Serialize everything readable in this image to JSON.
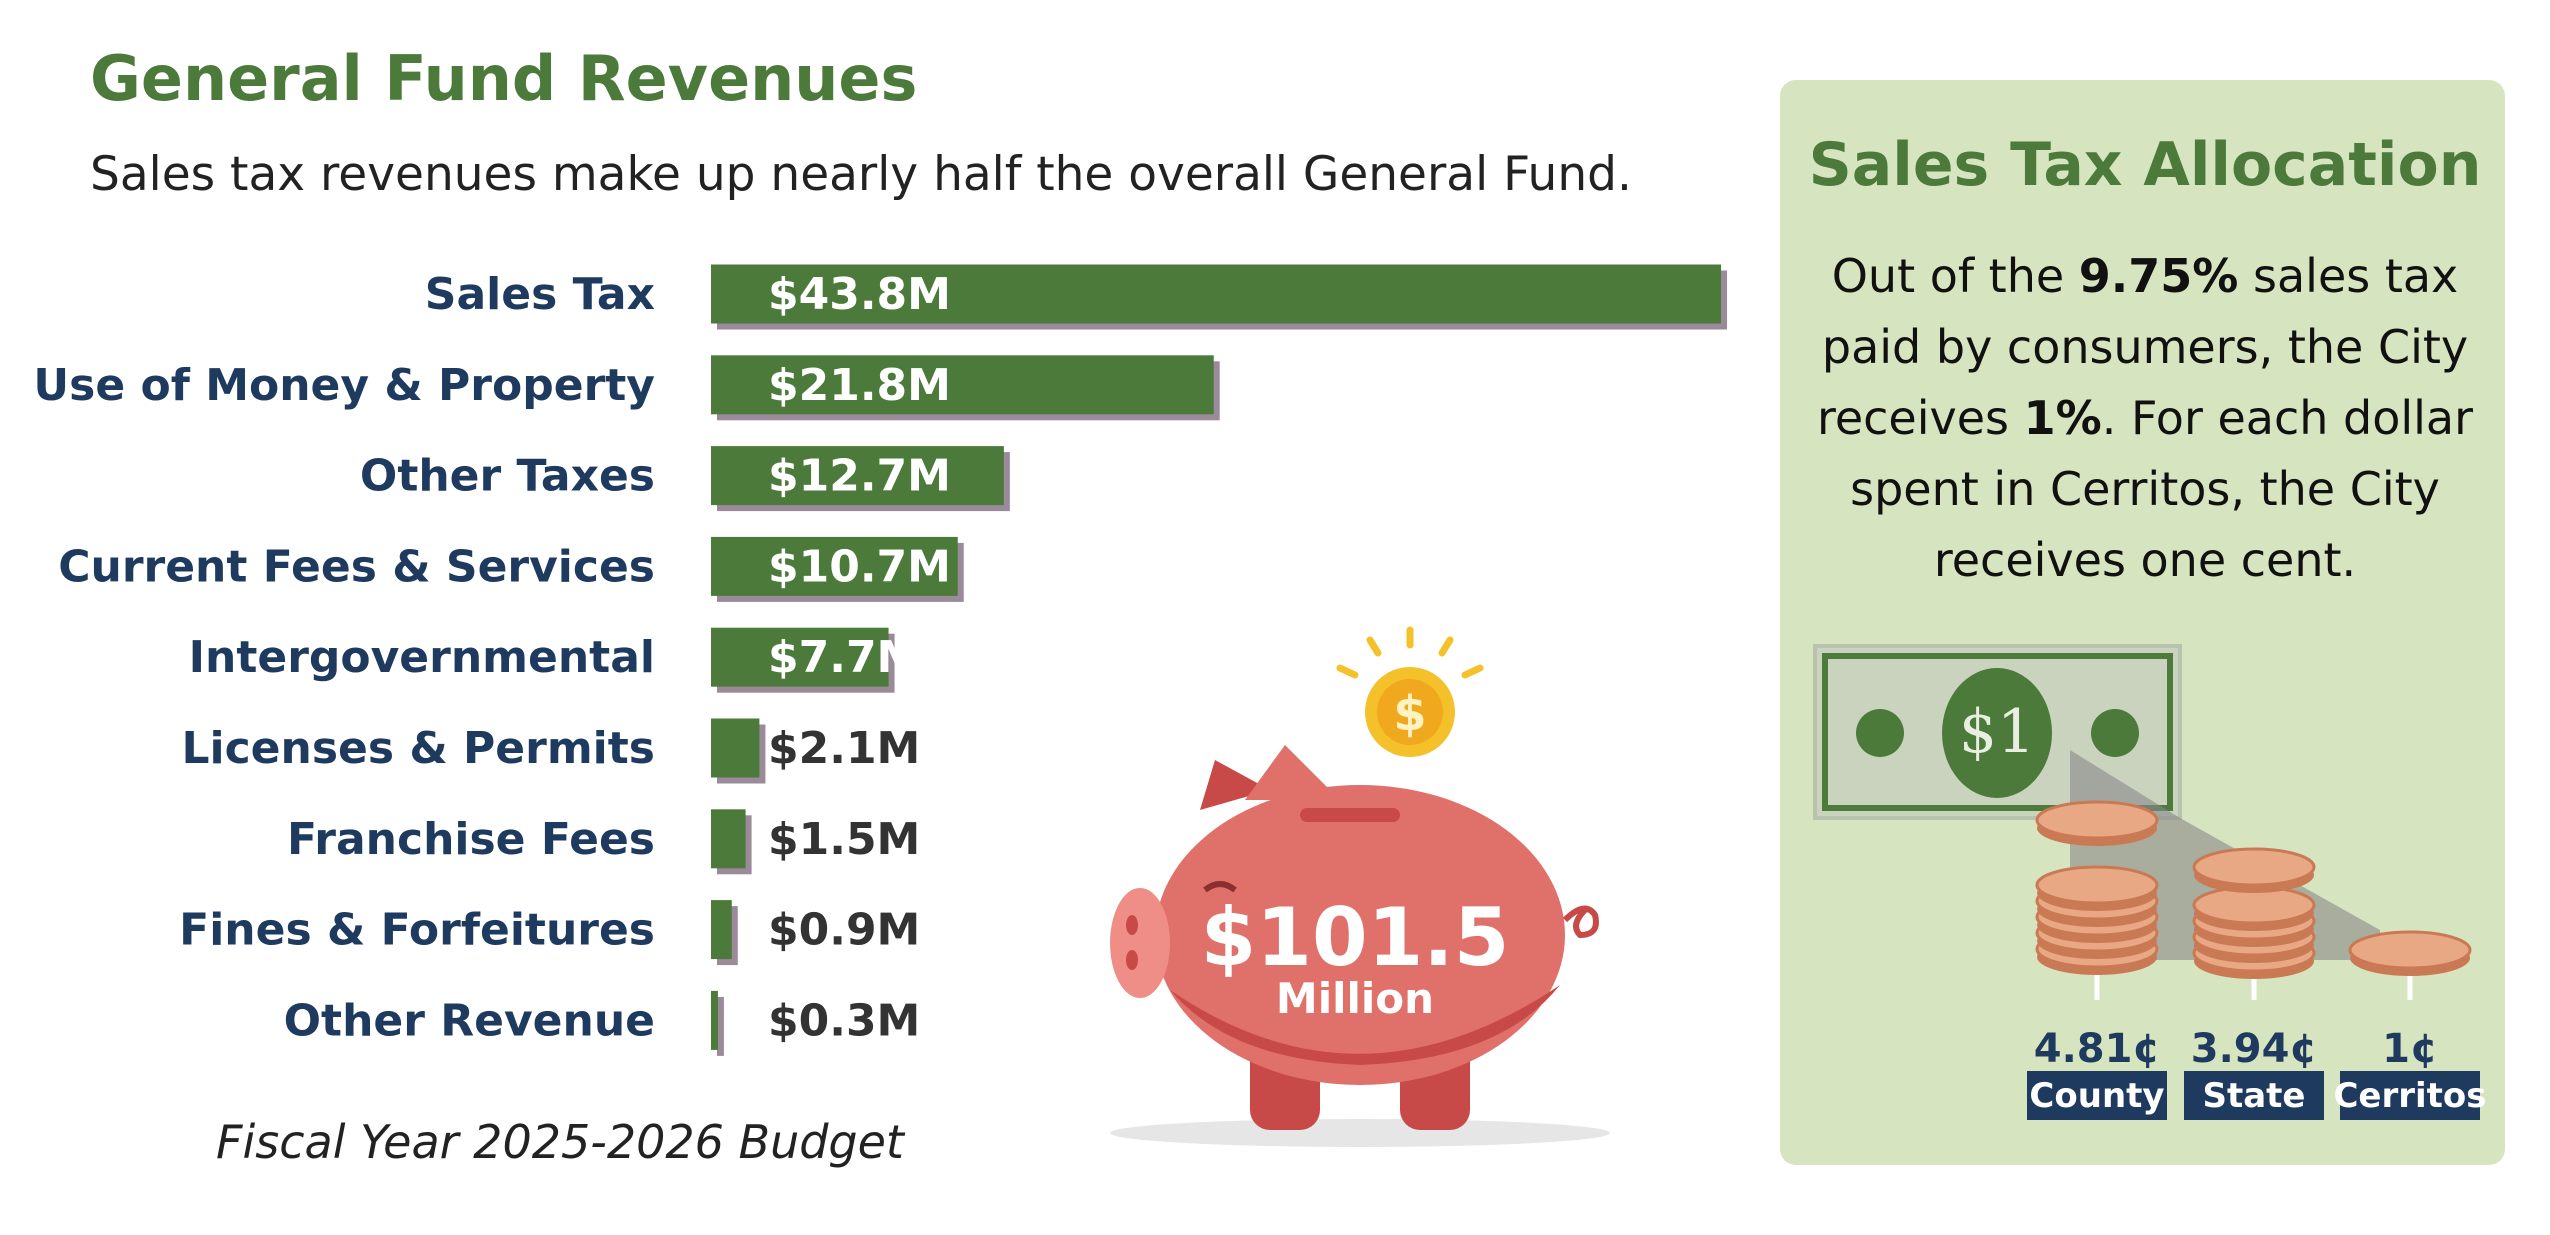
{
  "chart_data": {
    "type": "hbar",
    "title": "General Fund Revenues",
    "subtitle": "Sales tax revenues make up nearly half the overall General Fund.",
    "categories": [
      "Sales Tax",
      "Use of Money & Property",
      "Other Taxes",
      "Current Fees & Services",
      "Intergovernmental",
      "Licenses & Permits",
      "Franchise Fees",
      "Fines & Forfeitures",
      "Other Revenue"
    ],
    "values": [
      43.8,
      21.8,
      12.7,
      10.7,
      7.7,
      2.1,
      1.5,
      0.9,
      0.3
    ],
    "value_labels": [
      "$43.8M",
      "$21.8M",
      "$12.7M",
      "$10.7M",
      "$7.7M",
      "$2.1M",
      "$1.5M",
      "$0.9M",
      "$0.3M"
    ],
    "color": "#4b7a3a"
  },
  "total": {
    "amount": "$101.5",
    "unit": "Million"
  },
  "footnote": "Fiscal Year 2025-2026 Budget",
  "sales_tax": {
    "title": "Sales Tax Allocation",
    "lines": [
      [
        {
          "text": "Out of the ",
          "bold": false
        },
        {
          "text": "9.75%",
          "bold": true
        },
        {
          "text": " sales tax",
          "bold": false
        }
      ],
      [
        {
          "text": "paid by consumers, the City",
          "bold": false
        }
      ],
      [
        {
          "text": "receives ",
          "bold": false
        },
        {
          "text": "1%",
          "bold": true
        },
        {
          "text": ". For each dollar",
          "bold": false
        }
      ],
      [
        {
          "text": "spent in Cerritos, the City",
          "bold": false
        }
      ],
      [
        {
          "text": "receives one cent.",
          "bold": false
        }
      ]
    ],
    "bill": "$1",
    "shares": [
      {
        "amount": "4.81¢",
        "name": "County"
      },
      {
        "amount": "3.94¢",
        "name": "State"
      },
      {
        "amount": "1¢",
        "name": "Cerritos"
      }
    ]
  }
}
